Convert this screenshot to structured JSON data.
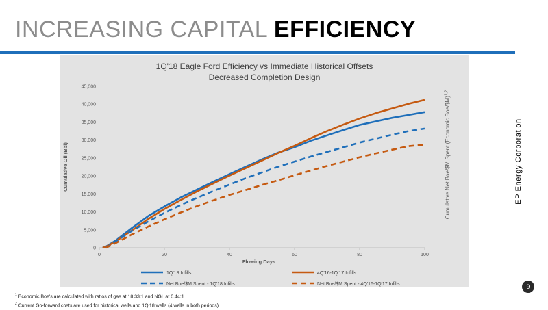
{
  "slide": {
    "title_light": "INCREASING CAPITAL",
    "title_bold": "EFFICIENCY",
    "footnote1": "Economic Boe's are calculated with ratios of gas at 18.33:1 and NGL at 0.44:1",
    "footnote1_mark": "1",
    "footnote2": "Current Go-forward costs are used for historical wells and 1Q'18 wells (4 wells in both periods)",
    "footnote2_mark": "2",
    "company": "EP Energy Corporation",
    "page_number": "9",
    "accent_color": "#1f6fba"
  },
  "chart_data": {
    "type": "line",
    "title": "1Q'18 Eagle Ford Efficiency vs Immediate Historical Offsets",
    "subtitle": "Decreased Completion Design",
    "xlabel": "Flowing Days",
    "ylabel": "Cumulative Oil (Bbl)",
    "y2label": "Cumulative Net Boe/$M Spent (Economic Boe/$M)",
    "y2label_sup": "1,2",
    "xlim": [
      0,
      100
    ],
    "ylim": [
      0,
      45000
    ],
    "x_ticks": [
      "0",
      "20",
      "40",
      "60",
      "80",
      "100"
    ],
    "y_ticks": [
      "0",
      "5,000",
      "10,000",
      "15,000",
      "20,000",
      "25,000",
      "30,000",
      "35,000",
      "40,000",
      "45,000"
    ],
    "legend_position": "bottom",
    "grid": false,
    "series": [
      {
        "name": "1Q'18 Infills",
        "color": "#1f6fba",
        "dash": false,
        "x": [
          1,
          2,
          5,
          10,
          15,
          20,
          25,
          30,
          35,
          40,
          45,
          50,
          55,
          60,
          65,
          70,
          75,
          80,
          85,
          90,
          95,
          100
        ],
        "y": [
          0,
          300,
          2000,
          5500,
          8800,
          11500,
          14000,
          16200,
          18400,
          20500,
          22600,
          24600,
          26500,
          28000,
          29800,
          31300,
          32800,
          34200,
          35200,
          36200,
          37000,
          37800
        ]
      },
      {
        "name": "4Q'16-1Q'17 Infills",
        "color": "#c55a11",
        "dash": false,
        "x": [
          1,
          2,
          5,
          10,
          15,
          20,
          25,
          30,
          35,
          40,
          45,
          50,
          55,
          60,
          65,
          70,
          75,
          80,
          85,
          90,
          95,
          100
        ],
        "y": [
          0,
          250,
          1800,
          4800,
          8000,
          10800,
          13300,
          15700,
          17900,
          20100,
          22200,
          24300,
          26400,
          28400,
          30500,
          32500,
          34300,
          36000,
          37500,
          38800,
          40100,
          41200
        ]
      },
      {
        "name": "Net Boe/$M Spent - 1Q'18 Infills",
        "color": "#1f6fba",
        "dash": true,
        "x": [
          2,
          5,
          10,
          15,
          20,
          25,
          30,
          35,
          40,
          45,
          50,
          55,
          60,
          65,
          70,
          75,
          80,
          85,
          90,
          95,
          100
        ],
        "y": [
          0,
          1800,
          4700,
          7300,
          9700,
          11900,
          13900,
          15800,
          17600,
          19400,
          21000,
          22600,
          24000,
          25400,
          26700,
          28000,
          29300,
          30400,
          31500,
          32500,
          33200
        ]
      },
      {
        "name": "Net Boe/$M Spent - 4Q'16-1Q'17 Infills",
        "color": "#c55a11",
        "dash": true,
        "x": [
          2,
          5,
          10,
          15,
          20,
          25,
          30,
          35,
          40,
          45,
          50,
          55,
          60,
          65,
          70,
          75,
          80,
          85,
          90,
          95,
          100
        ],
        "y": [
          0,
          1300,
          3700,
          5900,
          7900,
          9800,
          11600,
          13200,
          14700,
          16100,
          17500,
          18800,
          20200,
          21500,
          22800,
          24000,
          25200,
          26300,
          27300,
          28300,
          28700
        ]
      }
    ]
  }
}
